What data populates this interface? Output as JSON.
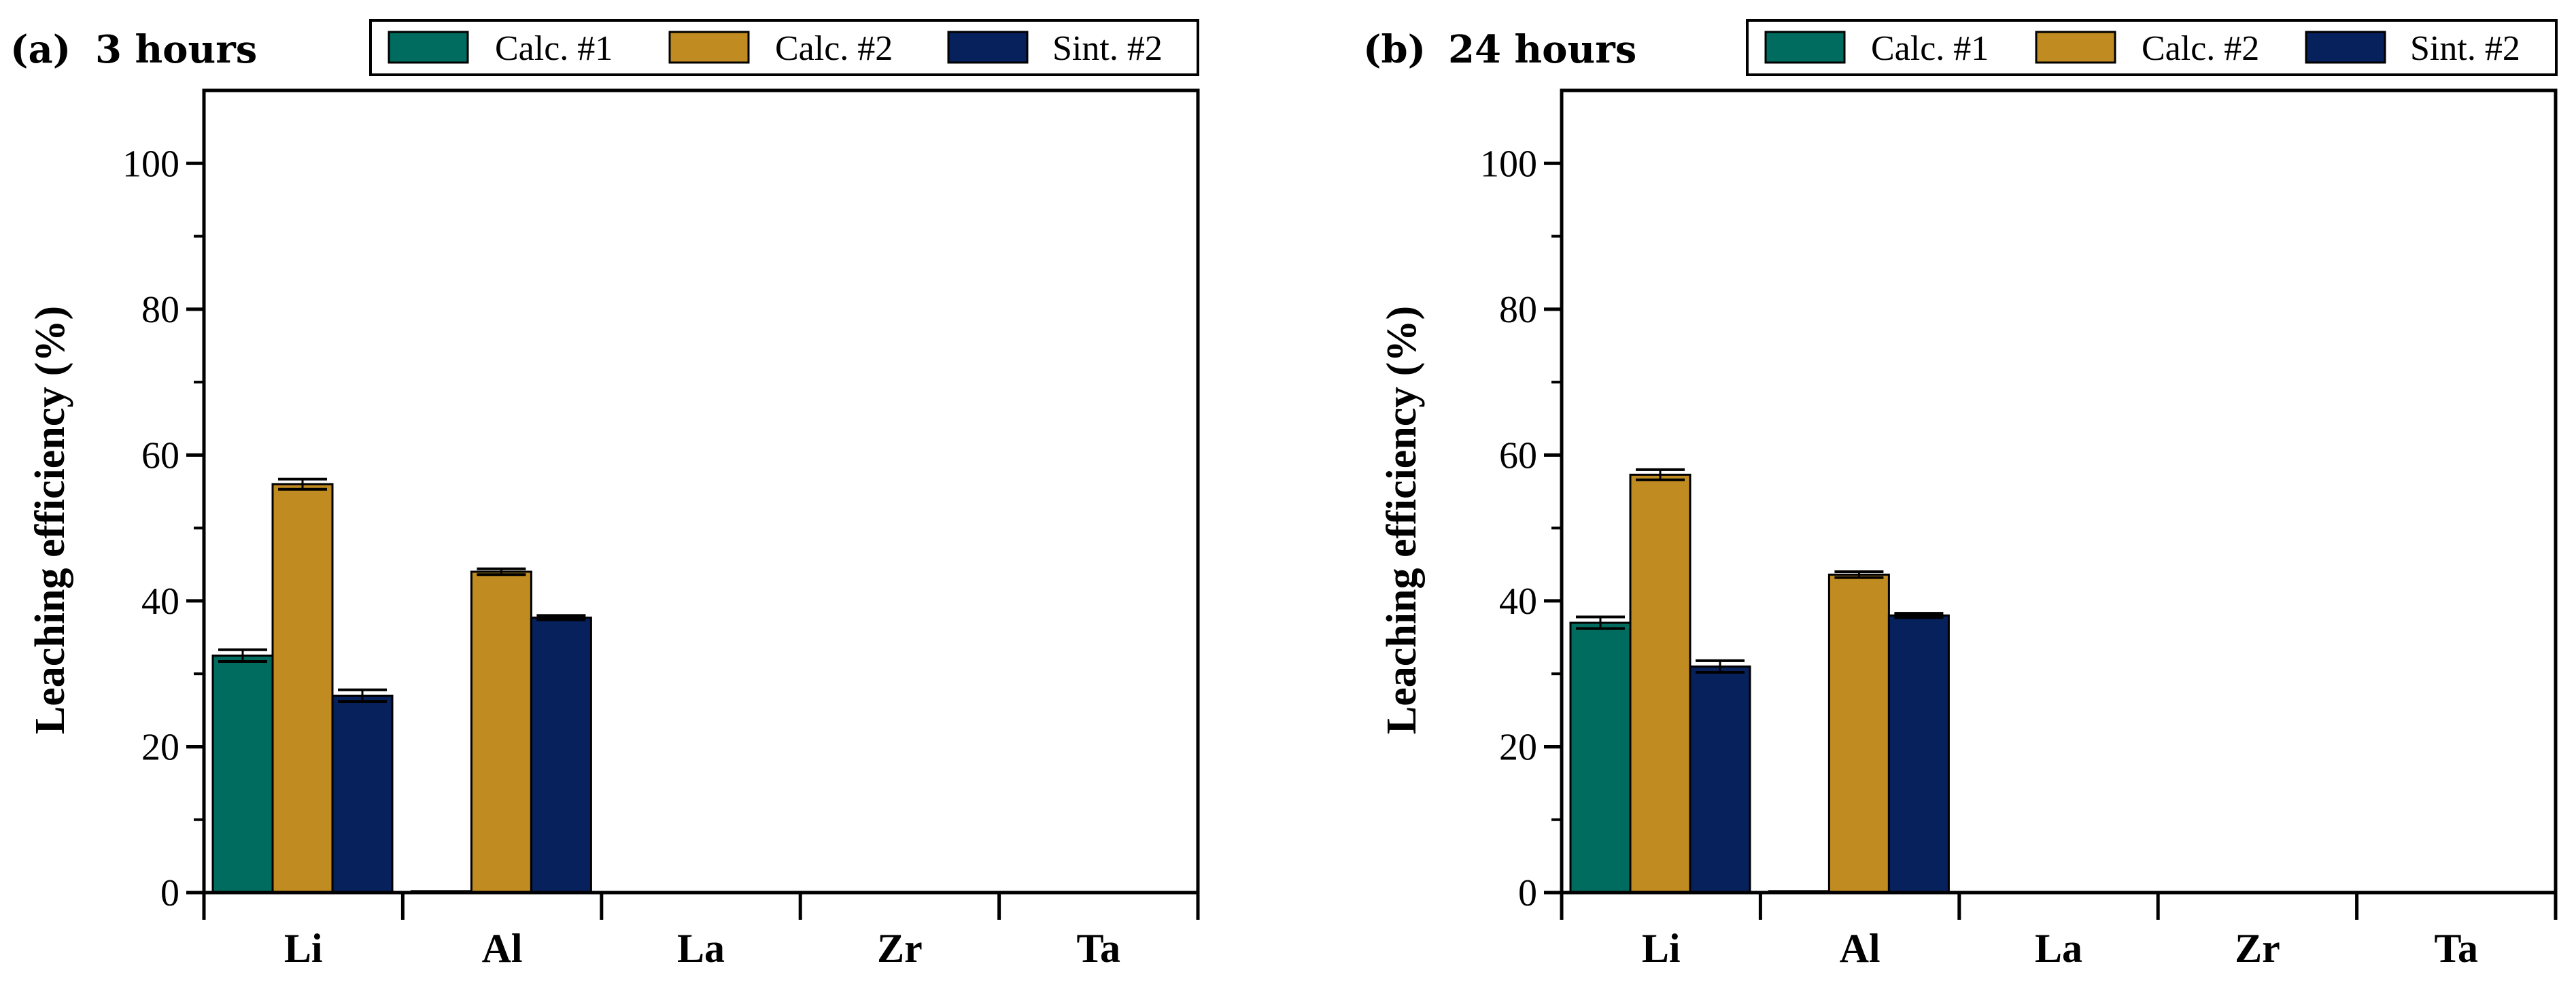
{
  "colors": {
    "calc1": "#006b5f",
    "calc2": "#c08b20",
    "sint2": "#06215c",
    "axis": "#000000",
    "background": "#ffffff"
  },
  "chart_data": [
    {
      "type": "bar",
      "panel_label": "(a)",
      "title": "3 hours",
      "xlabel": "",
      "ylabel": "Leaching efficiency (%)",
      "ylim": [
        0,
        110
      ],
      "yticks": [
        0,
        20,
        40,
        60,
        80,
        100
      ],
      "categories": [
        "Li",
        "Al",
        "La",
        "Zr",
        "Ta"
      ],
      "legend_position": "top",
      "series": [
        {
          "name": "Calc. #1",
          "color_key": "calc1",
          "values": [
            32.5,
            0.2,
            0,
            0,
            0
          ],
          "errors": [
            0.8,
            0,
            0,
            0,
            0
          ]
        },
        {
          "name": "Calc. #2",
          "color_key": "calc2",
          "values": [
            56.0,
            44.0,
            0,
            0,
            0
          ],
          "errors": [
            0.7,
            0.4,
            0,
            0,
            0
          ]
        },
        {
          "name": "Sint. #2",
          "color_key": "sint2",
          "values": [
            27.0,
            37.7,
            0,
            0,
            0
          ],
          "errors": [
            0.8,
            0.3,
            0,
            0,
            0
          ]
        }
      ]
    },
    {
      "type": "bar",
      "panel_label": "(b)",
      "title": "24 hours",
      "xlabel": "",
      "ylabel": "Leaching efficiency (%)",
      "ylim": [
        0,
        110
      ],
      "yticks": [
        0,
        20,
        40,
        60,
        80,
        100
      ],
      "categories": [
        "Li",
        "Al",
        "La",
        "Zr",
        "Ta"
      ],
      "legend_position": "top",
      "series": [
        {
          "name": "Calc. #1",
          "color_key": "calc1",
          "values": [
            37.0,
            0.2,
            0,
            0,
            0
          ],
          "errors": [
            0.8,
            0,
            0,
            0,
            0
          ]
        },
        {
          "name": "Calc. #2",
          "color_key": "calc2",
          "values": [
            57.3,
            43.6,
            0,
            0,
            0
          ],
          "errors": [
            0.7,
            0.4,
            0,
            0,
            0
          ]
        },
        {
          "name": "Sint. #2",
          "color_key": "sint2",
          "values": [
            31.0,
            38.0,
            0,
            0,
            0
          ],
          "errors": [
            0.8,
            0.3,
            0,
            0,
            0
          ]
        }
      ]
    }
  ]
}
